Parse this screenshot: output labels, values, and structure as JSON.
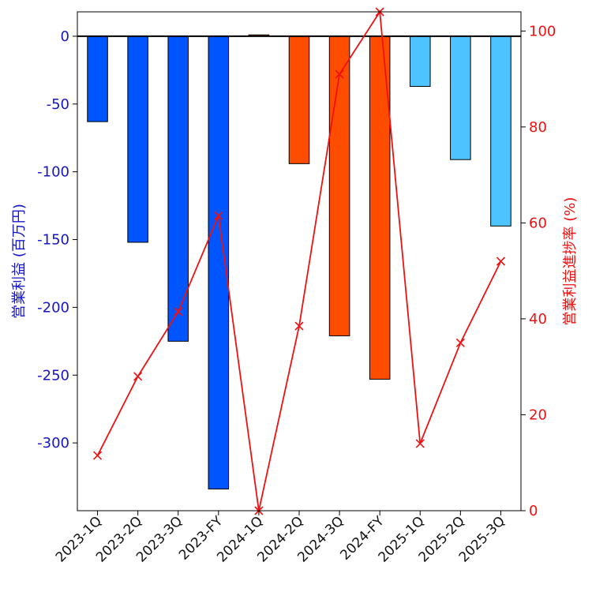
{
  "chart_data": {
    "type": "bar",
    "categories": [
      "2023-1Q",
      "2023-2Q",
      "2023-3Q",
      "2023-FY",
      "2024-1Q",
      "2024-2Q",
      "2024-3Q",
      "2024-FY",
      "2025-1Q",
      "2025-2Q",
      "2025-3Q"
    ],
    "series": [
      {
        "name": "",
        "type": "bar",
        "axis": "left",
        "values": [
          -63,
          -152,
          -225,
          -334,
          1,
          -94,
          -221,
          -253,
          -37,
          -91,
          -140
        ],
        "colors": [
          "#0055ff",
          "#0055ff",
          "#0055ff",
          "#0055ff",
          "#ff4d00",
          "#ff4d00",
          "#ff4d00",
          "#ff4d00",
          "#4dc3ff",
          "#4dc3ff",
          "#4dc3ff"
        ]
      },
      {
        "name": "",
        "type": "line",
        "axis": "right",
        "marker": "x",
        "color": "#ee1111",
        "values": [
          11.5,
          28,
          41.5,
          61.5,
          0,
          38.5,
          91,
          104,
          14,
          35,
          52
        ]
      }
    ],
    "ylabel_left": "営業利益 (百万円)",
    "ylabel_right": "営業利益進捗率 (%)",
    "ylim_left": [
      -350,
      18
    ],
    "ylim_right": [
      0,
      104
    ],
    "yticks_left": [
      0,
      -50,
      -100,
      -150,
      -200,
      -250,
      -300
    ],
    "yticks_right": [
      0,
      20,
      40,
      60,
      80,
      100
    ],
    "left_tick_labels": [
      "0",
      "-50",
      "-100",
      "-150",
      "-200",
      "-250",
      "-300"
    ],
    "right_tick_labels": [
      "0",
      "20",
      "40",
      "60",
      "80",
      "100"
    ],
    "zero_line": true,
    "grid": false,
    "colors": {
      "left_axis": "#1515c8",
      "right_axis": "#ee1111",
      "bar_2023": "#0055ff",
      "bar_2024": "#ff4d00",
      "bar_2025": "#4dc3ff"
    }
  }
}
